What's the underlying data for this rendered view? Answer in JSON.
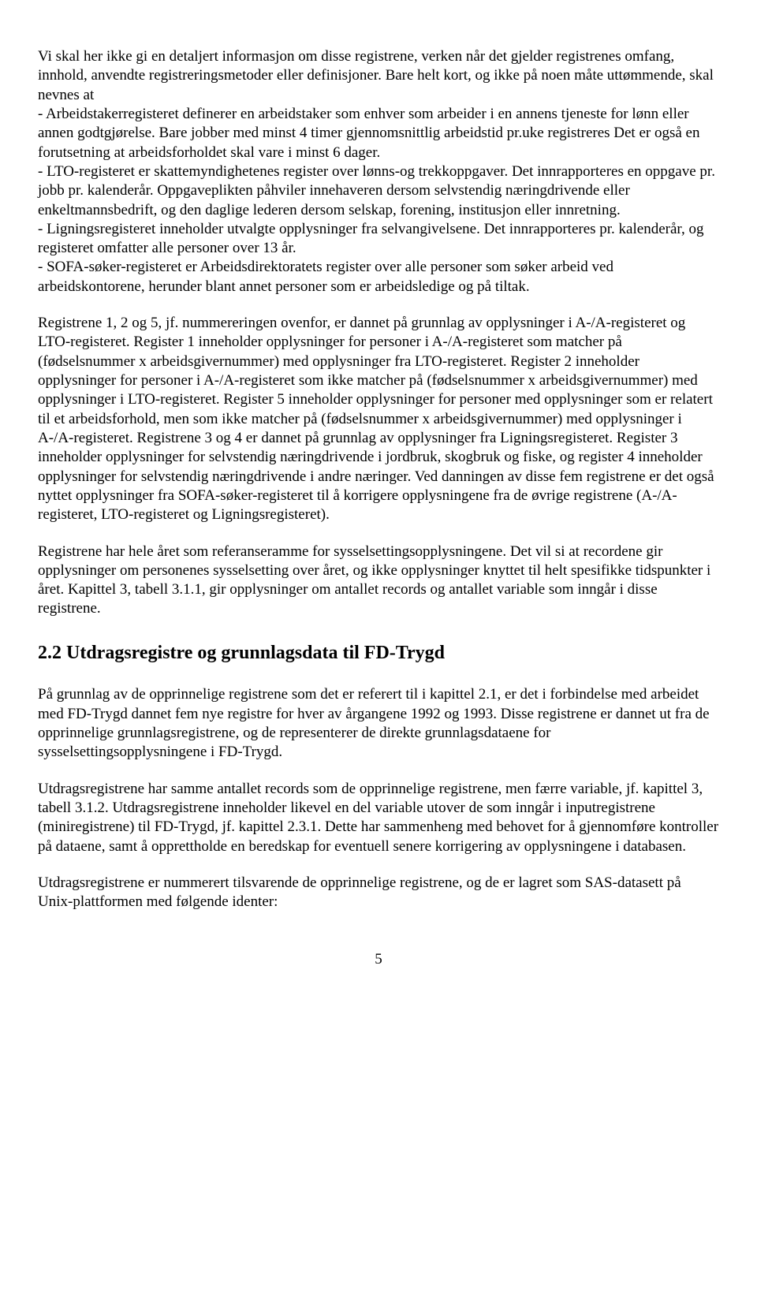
{
  "para1": "Vi skal her ikke gi en detaljert informasjon om disse registrene, verken når det gjelder registrenes omfang,  innhold, anvendte registreringsmetoder eller definisjoner. Bare helt kort, og ikke på noen måte uttømmende, skal nevnes at",
  "para2": "- Arbeidstakerregisteret definerer en arbeidstaker som enhver som arbeider i en annens tjeneste for lønn eller annen godtgjørelse. Bare jobber med minst 4 timer gjennomsnittlig arbeidstid pr.uke registreres Det er også en forutsetning at arbeidsforholdet skal vare i minst 6 dager.",
  "para3": "- LTO-registeret er skattemyndighetenes register over lønns-og trekkoppgaver. Det innrapporteres en oppgave pr. jobb pr. kalenderår. Oppgaveplikten påhviler innehaveren dersom selvstendig næringdrivende eller enkeltmannsbedrift, og den daglige lederen dersom selskap, forening, institusjon eller innretning.",
  "para4": "- Ligningsregisteret inneholder utvalgte opplysninger fra selvangivelsene. Det innrapporteres pr. kalenderår, og registeret omfatter alle personer over 13 år.",
  "para5": "- SOFA-søker-registeret er Arbeidsdirektoratets register over alle personer som søker arbeid ved arbeidskontorene, herunder blant annet personer som er arbeidsledige og på tiltak.",
  "para6": "Registrene 1, 2 og 5, jf. nummereringen ovenfor, er dannet på grunnlag av opplysninger i A-/A-registeret og LTO-registeret. Register 1 inneholder opplysninger for personer i A-/A-registeret som matcher på (fødselsnummer x arbeidsgivernummer) med opplysninger fra LTO-registeret. Register 2 inneholder opplysninger for personer i A-/A-registeret som ikke matcher på (fødselsnummer x arbeidsgivernummer) med opplysninger i LTO-registeret. Register 5 inneholder opplysninger for personer med opplysninger som er relatert til et arbeidsforhold, men som ikke matcher på (fødselsnummer x arbeidsgivernummer) med opplysninger i A-/A-registeret. Registrene 3 og 4 er dannet på grunnlag av opplysninger fra Ligningsregisteret. Register 3 inneholder opplysninger for selvstendig næringdrivende i jordbruk, skogbruk og fiske, og register 4 inneholder opplysninger for selvstendig næringdrivende i andre næringer. Ved danningen av disse fem registrene er det også nyttet opplysninger fra SOFA-søker-registeret til å korrigere opplysningene fra de øvrige registrene (A-/A-registeret, LTO-registeret og Ligningsregisteret).",
  "para7": "Registrene har hele året som referanseramme for sysselsettingsopplysningene. Det vil si at recordene gir opplysninger om personenes sysselsetting over året, og ikke opplysninger knyttet til helt spesifikke tidspunkter i året. Kapittel 3, tabell 3.1.1, gir opplysninger om antallet records og antallet variable som inngår i disse registrene.",
  "heading": "2.2 Utdragsregistre og grunnlagsdata til FD-Trygd",
  "para8": "På grunnlag av de opprinnelige registrene som det er referert til i kapittel 2.1, er det i forbindelse med arbeidet med FD-Trygd dannet fem nye registre for hver av årgangene 1992 og 1993. Disse registrene er dannet ut fra de opprinnelige grunnlagsregistrene, og de representerer de direkte grunnlagsdataene for sysselsettingsopplysningene i FD-Trygd.",
  "para9": "Utdragsregistrene har samme antallet records som de opprinnelige registrene, men færre variable, jf. kapittel 3, tabell 3.1.2. Utdragsregistrene inneholder likevel en del variable utover de som inngår i inputregistrene (miniregistrene) til FD-Trygd, jf. kapittel 2.3.1. Dette har sammenheng med behovet for å gjennomføre kontroller på dataene, samt å opprettholde en beredskap for eventuell senere korrigering av opplysningene i databasen.",
  "para10": "Utdragsregistrene er nummerert tilsvarende de opprinnelige registrene, og de er lagret som SAS-datasett på Unix-plattformen med følgende identer:",
  "pageNumber": "5"
}
